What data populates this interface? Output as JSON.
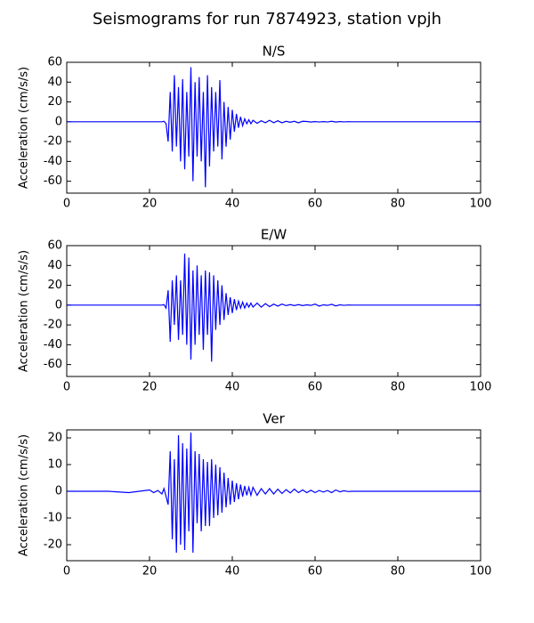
{
  "title": "Seismograms for run 7874923, station vpjh",
  "chart_data": [
    {
      "type": "line",
      "title": "N/S",
      "ylabel": "Acceleration (cm/s/s)",
      "x": [
        0,
        5,
        10,
        15,
        20,
        21,
        22,
        23,
        23.5,
        24,
        24.5,
        25,
        25.5,
        26,
        26.5,
        27,
        27.5,
        28,
        28.5,
        29,
        29.5,
        30,
        30.5,
        31,
        31.5,
        32,
        32.5,
        33,
        33.5,
        34,
        34.5,
        35,
        35.5,
        36,
        36.5,
        37,
        37.5,
        38,
        38.5,
        39,
        39.5,
        40,
        40.5,
        41,
        41.5,
        42,
        42.5,
        43,
        43.5,
        44,
        44.5,
        45,
        46,
        47,
        48,
        49,
        50,
        51,
        52,
        53,
        54,
        55,
        56,
        57,
        58,
        59,
        60,
        61,
        62,
        63,
        64,
        65,
        66,
        67,
        68,
        69,
        70,
        75,
        80,
        85,
        90,
        95,
        100
      ],
      "series": [
        {
          "color": "#0000ff",
          "values": [
            0,
            0,
            0,
            0,
            0,
            0,
            0,
            0,
            0.5,
            -2,
            -20,
            30,
            -30,
            47,
            -25,
            35,
            -40,
            43,
            -48,
            30,
            -35,
            55,
            -60,
            40,
            -35,
            45,
            -40,
            30,
            -66,
            47,
            -45,
            35,
            -30,
            30,
            -25,
            42,
            -38,
            20,
            -25,
            15,
            -18,
            12,
            -10,
            8,
            -6,
            5,
            -4,
            3,
            -2,
            2,
            -2,
            1.5,
            -1.5,
            1,
            -1,
            1.5,
            -1,
            1,
            -1,
            0.5,
            -0.5,
            0.5,
            -1,
            0.5,
            0.3,
            -0.3,
            0.2,
            -0.2,
            0.2,
            -0.2,
            0.5,
            -0.3,
            0.2,
            -0.1,
            0.1,
            0,
            0,
            0,
            0,
            0,
            0,
            0,
            0
          ]
        }
      ],
      "xlim": [
        0,
        100
      ],
      "xticks": [
        0,
        20,
        40,
        60,
        80,
        100
      ],
      "ylim": [
        -72,
        60
      ],
      "yticks": [
        -60,
        -40,
        -20,
        0,
        20,
        40,
        60
      ]
    },
    {
      "type": "line",
      "title": "E/W",
      "ylabel": "Acceleration (cm/s/s)",
      "x": [
        0,
        5,
        10,
        15,
        20,
        21,
        22,
        23,
        23.5,
        24,
        24.5,
        25,
        25.5,
        26,
        26.5,
        27,
        27.5,
        28,
        28.5,
        29,
        29.5,
        30,
        30.5,
        31,
        31.5,
        32,
        32.5,
        33,
        33.5,
        34,
        34.5,
        35,
        35.5,
        36,
        36.5,
        37,
        37.5,
        38,
        38.5,
        39,
        39.5,
        40,
        40.5,
        41,
        41.5,
        42,
        42.5,
        43,
        43.5,
        44,
        44.5,
        45,
        46,
        47,
        48,
        49,
        50,
        51,
        52,
        53,
        54,
        55,
        56,
        57,
        58,
        59,
        60,
        61,
        62,
        63,
        64,
        65,
        66,
        67,
        68,
        69,
        70,
        75,
        80,
        85,
        90,
        95,
        100
      ],
      "series": [
        {
          "color": "#0000ff",
          "values": [
            0,
            0,
            0,
            0,
            0,
            0,
            0,
            0,
            0.5,
            -3,
            15,
            -37,
            25,
            -20,
            30,
            -35,
            25,
            -30,
            52,
            -40,
            48,
            -55,
            35,
            -40,
            40,
            -30,
            30,
            -45,
            35,
            -30,
            33,
            -57,
            30,
            -25,
            25,
            -20,
            20,
            -15,
            12,
            -10,
            8,
            -8,
            6,
            -5,
            4,
            -3,
            3,
            -3,
            2,
            -2,
            2,
            -2,
            2,
            -2,
            1.5,
            -1.5,
            1,
            -1,
            1,
            -0.5,
            0.5,
            -0.5,
            0.5,
            -0.5,
            0.3,
            -0.3,
            1,
            -1,
            0.3,
            -0.3,
            0.8,
            -0.8,
            0.3,
            -0.2,
            0.1,
            0,
            0,
            0,
            0,
            0,
            0,
            0,
            0
          ]
        }
      ],
      "xlim": [
        0,
        100
      ],
      "xticks": [
        0,
        20,
        40,
        60,
        80,
        100
      ],
      "ylim": [
        -72,
        60
      ],
      "yticks": [
        -60,
        -40,
        -20,
        0,
        20,
        40,
        60
      ]
    },
    {
      "type": "line",
      "title": "Ver",
      "ylabel": "Acceleration (cm/s/s)",
      "x": [
        0,
        5,
        10,
        15,
        20,
        21,
        22,
        23,
        23.5,
        24,
        24.5,
        25,
        25.5,
        26,
        26.5,
        27,
        27.5,
        28,
        28.5,
        29,
        29.5,
        30,
        30.5,
        31,
        31.5,
        32,
        32.5,
        33,
        33.5,
        34,
        34.5,
        35,
        35.5,
        36,
        36.5,
        37,
        37.5,
        38,
        38.5,
        39,
        39.5,
        40,
        40.5,
        41,
        41.5,
        42,
        42.5,
        43,
        43.5,
        44,
        44.5,
        45,
        46,
        47,
        48,
        49,
        50,
        51,
        52,
        53,
        54,
        55,
        56,
        57,
        58,
        59,
        60,
        61,
        62,
        63,
        64,
        65,
        66,
        67,
        68,
        69,
        70,
        75,
        80,
        85,
        90,
        95,
        100
      ],
      "series": [
        {
          "color": "#0000ff",
          "values": [
            0,
            0,
            0,
            -0.5,
            0.5,
            -0.5,
            0.3,
            -1,
            1,
            -2,
            -5,
            15,
            -18,
            12,
            -23,
            21,
            -20,
            18,
            -22,
            16,
            -15,
            22,
            -23,
            15,
            -12,
            14,
            -15,
            12,
            -13,
            11,
            -13,
            12,
            -10,
            10,
            -9,
            9,
            -8,
            7,
            -6,
            5,
            -5,
            4,
            -4,
            3,
            -3,
            2.5,
            -2,
            2,
            -1.5,
            1.5,
            -1.5,
            1.5,
            -1.5,
            1,
            -1,
            1,
            -1,
            0.8,
            -0.8,
            0.6,
            -0.6,
            0.8,
            -0.5,
            0.5,
            -0.5,
            0.4,
            -0.5,
            0.3,
            -0.3,
            0.3,
            -0.5,
            0.5,
            -0.2,
            0.2,
            -0.1,
            0,
            0,
            0,
            0,
            0,
            0,
            0,
            0
          ]
        }
      ],
      "xlim": [
        0,
        100
      ],
      "xticks": [
        0,
        20,
        40,
        60,
        80,
        100
      ],
      "ylim": [
        -26,
        23
      ],
      "yticks": [
        -20,
        -10,
        0,
        10,
        20
      ]
    }
  ]
}
